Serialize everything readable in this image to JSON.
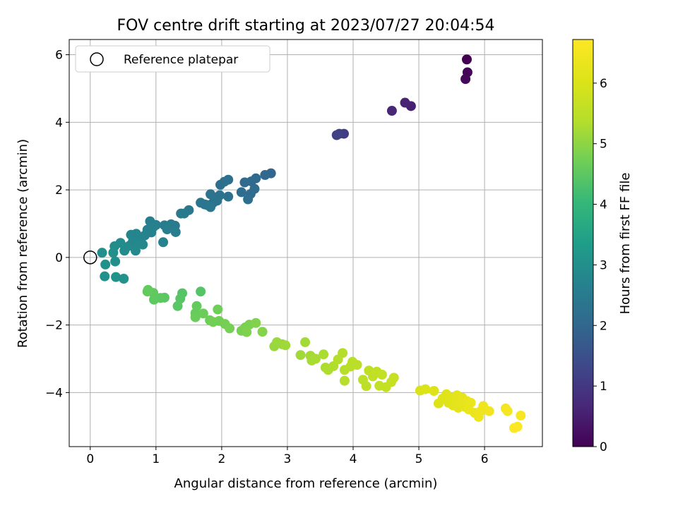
{
  "chart_data": {
    "type": "scatter",
    "title": "FOV centre drift starting at 2023/07/27 20:04:54",
    "xlabel": "Angular distance from reference (arcmin)",
    "ylabel": "Rotation from reference (arcmin)",
    "xlim": [
      -0.32,
      6.88
    ],
    "ylim": [
      -5.6,
      6.45
    ],
    "xticks": [
      "0",
      "1",
      "2",
      "3",
      "4",
      "5",
      "6"
    ],
    "yticks": [
      "−4",
      "−2",
      "0",
      "2",
      "4",
      "6"
    ],
    "grid": true,
    "legend": {
      "position": "top-left",
      "label": "Reference platepar"
    },
    "reference_point": {
      "x": 0,
      "y": 0
    },
    "colorbar": {
      "label": "Hours from first FF file",
      "range": [
        0,
        6.72
      ],
      "ticks": [
        "0",
        "1",
        "2",
        "3",
        "4",
        "5",
        "6"
      ],
      "colormap": "viridis"
    },
    "points": [
      {
        "x": 5.73,
        "y": 5.86,
        "h": 0.0
      },
      {
        "x": 5.74,
        "y": 5.48,
        "h": 0.05
      },
      {
        "x": 5.71,
        "y": 5.28,
        "h": 0.1
      },
      {
        "x": 4.88,
        "y": 4.48,
        "h": 0.55
      },
      {
        "x": 4.79,
        "y": 4.58,
        "h": 0.6
      },
      {
        "x": 4.59,
        "y": 4.34,
        "h": 0.65
      },
      {
        "x": 3.86,
        "y": 3.66,
        "h": 1.1
      },
      {
        "x": 3.79,
        "y": 3.66,
        "h": 1.15
      },
      {
        "x": 3.75,
        "y": 3.62,
        "h": 1.2
      },
      {
        "x": 2.75,
        "y": 2.49,
        "h": 2.0
      },
      {
        "x": 2.66,
        "y": 2.44,
        "h": 2.02
      },
      {
        "x": 2.52,
        "y": 2.34,
        "h": 2.05
      },
      {
        "x": 2.45,
        "y": 2.25,
        "h": 2.07
      },
      {
        "x": 2.35,
        "y": 2.22,
        "h": 2.09
      },
      {
        "x": 2.5,
        "y": 2.03,
        "h": 2.11
      },
      {
        "x": 2.44,
        "y": 1.88,
        "h": 2.13
      },
      {
        "x": 2.3,
        "y": 1.93,
        "h": 2.15
      },
      {
        "x": 2.4,
        "y": 1.72,
        "h": 2.17
      },
      {
        "x": 2.1,
        "y": 2.3,
        "h": 2.19
      },
      {
        "x": 2.04,
        "y": 2.24,
        "h": 2.21
      },
      {
        "x": 1.98,
        "y": 2.15,
        "h": 2.23
      },
      {
        "x": 2.1,
        "y": 1.8,
        "h": 2.25
      },
      {
        "x": 1.97,
        "y": 1.84,
        "h": 2.27
      },
      {
        "x": 1.93,
        "y": 1.68,
        "h": 2.29
      },
      {
        "x": 1.83,
        "y": 1.87,
        "h": 2.31
      },
      {
        "x": 1.87,
        "y": 1.62,
        "h": 2.33
      },
      {
        "x": 1.78,
        "y": 1.55,
        "h": 2.35
      },
      {
        "x": 1.68,
        "y": 1.62,
        "h": 2.37
      },
      {
        "x": 1.74,
        "y": 1.57,
        "h": 2.39
      },
      {
        "x": 1.83,
        "y": 1.49,
        "h": 2.41
      },
      {
        "x": 1.5,
        "y": 1.4,
        "h": 2.43
      },
      {
        "x": 1.43,
        "y": 1.3,
        "h": 2.45
      },
      {
        "x": 1.38,
        "y": 1.3,
        "h": 2.47
      },
      {
        "x": 1.29,
        "y": 0.94,
        "h": 2.49
      },
      {
        "x": 1.23,
        "y": 0.98,
        "h": 2.51
      },
      {
        "x": 1.13,
        "y": 0.95,
        "h": 2.53
      },
      {
        "x": 1.17,
        "y": 0.83,
        "h": 2.55
      },
      {
        "x": 1.3,
        "y": 0.75,
        "h": 2.57
      },
      {
        "x": 1.0,
        "y": 0.96,
        "h": 2.59
      },
      {
        "x": 0.91,
        "y": 1.07,
        "h": 2.61
      },
      {
        "x": 0.96,
        "y": 0.9,
        "h": 2.63
      },
      {
        "x": 0.87,
        "y": 0.82,
        "h": 2.65
      },
      {
        "x": 0.93,
        "y": 0.74,
        "h": 2.67
      },
      {
        "x": 1.11,
        "y": 0.45,
        "h": 2.69
      },
      {
        "x": 0.83,
        "y": 0.65,
        "h": 2.71
      },
      {
        "x": 0.77,
        "y": 0.55,
        "h": 2.73
      },
      {
        "x": 0.7,
        "y": 0.7,
        "h": 2.75
      },
      {
        "x": 0.62,
        "y": 0.67,
        "h": 2.77
      },
      {
        "x": 0.65,
        "y": 0.48,
        "h": 2.79
      },
      {
        "x": 0.6,
        "y": 0.35,
        "h": 2.81
      },
      {
        "x": 0.72,
        "y": 0.41,
        "h": 2.83
      },
      {
        "x": 0.8,
        "y": 0.38,
        "h": 2.85
      },
      {
        "x": 0.55,
        "y": 0.3,
        "h": 2.87
      },
      {
        "x": 0.69,
        "y": 0.2,
        "h": 2.89
      },
      {
        "x": 0.52,
        "y": 0.2,
        "h": 2.91
      },
      {
        "x": 0.46,
        "y": 0.43,
        "h": 2.93
      },
      {
        "x": 0.37,
        "y": 0.33,
        "h": 2.95
      },
      {
        "x": 0.35,
        "y": 0.14,
        "h": 2.97
      },
      {
        "x": 0.18,
        "y": 0.14,
        "h": 2.99
      },
      {
        "x": 0.38,
        "y": -0.12,
        "h": 3.01
      },
      {
        "x": 0.23,
        "y": -0.21,
        "h": 3.03
      },
      {
        "x": 0.22,
        "y": -0.56,
        "h": 3.05
      },
      {
        "x": 0.39,
        "y": -0.58,
        "h": 3.07
      },
      {
        "x": 0.51,
        "y": -0.63,
        "h": 3.09
      },
      {
        "x": 1.68,
        "y": -1.01,
        "h": 4.4
      },
      {
        "x": 1.4,
        "y": -1.06,
        "h": 4.42
      },
      {
        "x": 1.37,
        "y": -1.22,
        "h": 4.44
      },
      {
        "x": 1.33,
        "y": -1.44,
        "h": 4.46
      },
      {
        "x": 1.13,
        "y": -1.19,
        "h": 4.48
      },
      {
        "x": 1.07,
        "y": -1.2,
        "h": 4.5
      },
      {
        "x": 0.97,
        "y": -1.25,
        "h": 4.52
      },
      {
        "x": 0.96,
        "y": -1.05,
        "h": 4.54
      },
      {
        "x": 0.88,
        "y": -0.96,
        "h": 4.56
      },
      {
        "x": 0.87,
        "y": -1.01,
        "h": 4.58
      },
      {
        "x": 1.62,
        "y": -1.44,
        "h": 4.6
      },
      {
        "x": 1.6,
        "y": -1.65,
        "h": 4.62
      },
      {
        "x": 1.6,
        "y": -1.77,
        "h": 4.64
      },
      {
        "x": 1.72,
        "y": -1.66,
        "h": 4.66
      },
      {
        "x": 1.82,
        "y": -1.86,
        "h": 4.68
      },
      {
        "x": 1.94,
        "y": -1.54,
        "h": 4.7
      },
      {
        "x": 1.96,
        "y": -1.88,
        "h": 4.72
      },
      {
        "x": 1.87,
        "y": -1.91,
        "h": 4.74
      },
      {
        "x": 2.05,
        "y": -1.97,
        "h": 4.76
      },
      {
        "x": 2.12,
        "y": -2.1,
        "h": 4.78
      },
      {
        "x": 2.3,
        "y": -2.17,
        "h": 4.8
      },
      {
        "x": 2.36,
        "y": -2.07,
        "h": 4.82
      },
      {
        "x": 2.42,
        "y": -1.99,
        "h": 4.84
      },
      {
        "x": 2.38,
        "y": -2.21,
        "h": 4.86
      },
      {
        "x": 2.52,
        "y": -1.94,
        "h": 4.88
      },
      {
        "x": 2.62,
        "y": -2.2,
        "h": 4.9
      },
      {
        "x": 2.8,
        "y": -2.63,
        "h": 5.1
      },
      {
        "x": 2.84,
        "y": -2.51,
        "h": 5.12
      },
      {
        "x": 2.92,
        "y": -2.57,
        "h": 5.14
      },
      {
        "x": 2.97,
        "y": -2.6,
        "h": 5.16
      },
      {
        "x": 3.2,
        "y": -2.89,
        "h": 5.18
      },
      {
        "x": 3.27,
        "y": -2.51,
        "h": 5.2
      },
      {
        "x": 3.35,
        "y": -2.91,
        "h": 5.22
      },
      {
        "x": 3.37,
        "y": -3.05,
        "h": 5.24
      },
      {
        "x": 3.43,
        "y": -3.0,
        "h": 5.26
      },
      {
        "x": 3.55,
        "y": -2.87,
        "h": 5.28
      },
      {
        "x": 3.58,
        "y": -3.26,
        "h": 5.3
      },
      {
        "x": 3.62,
        "y": -3.33,
        "h": 5.32
      },
      {
        "x": 3.7,
        "y": -3.22,
        "h": 5.34
      },
      {
        "x": 3.77,
        "y": -3.02,
        "h": 5.36
      },
      {
        "x": 3.84,
        "y": -2.83,
        "h": 5.38
      },
      {
        "x": 3.87,
        "y": -3.33,
        "h": 5.4
      },
      {
        "x": 3.87,
        "y": -3.65,
        "h": 5.42
      },
      {
        "x": 3.96,
        "y": -3.23,
        "h": 5.44
      },
      {
        "x": 3.99,
        "y": -3.09,
        "h": 5.46
      },
      {
        "x": 4.06,
        "y": -3.18,
        "h": 5.48
      },
      {
        "x": 4.15,
        "y": -3.62,
        "h": 5.5
      },
      {
        "x": 4.2,
        "y": -3.81,
        "h": 5.52
      },
      {
        "x": 4.24,
        "y": -3.35,
        "h": 5.54
      },
      {
        "x": 4.3,
        "y": -3.52,
        "h": 5.56
      },
      {
        "x": 4.36,
        "y": -3.38,
        "h": 5.58
      },
      {
        "x": 4.4,
        "y": -3.8,
        "h": 5.6
      },
      {
        "x": 4.44,
        "y": -3.47,
        "h": 5.62
      },
      {
        "x": 4.5,
        "y": -3.84,
        "h": 5.64
      },
      {
        "x": 4.58,
        "y": -3.69,
        "h": 5.66
      },
      {
        "x": 4.62,
        "y": -3.56,
        "h": 5.68
      },
      {
        "x": 5.02,
        "y": -3.94,
        "h": 6.0
      },
      {
        "x": 5.1,
        "y": -3.9,
        "h": 6.02
      },
      {
        "x": 5.23,
        "y": -3.95,
        "h": 6.04
      },
      {
        "x": 5.3,
        "y": -4.32,
        "h": 6.06
      },
      {
        "x": 5.36,
        "y": -4.18,
        "h": 6.08
      },
      {
        "x": 5.42,
        "y": -4.05,
        "h": 6.1
      },
      {
        "x": 5.45,
        "y": -4.3,
        "h": 6.12
      },
      {
        "x": 5.49,
        "y": -4.15,
        "h": 6.14
      },
      {
        "x": 5.52,
        "y": -4.38,
        "h": 6.16
      },
      {
        "x": 5.56,
        "y": -4.22,
        "h": 6.18
      },
      {
        "x": 5.58,
        "y": -4.08,
        "h": 6.2
      },
      {
        "x": 5.6,
        "y": -4.45,
        "h": 6.22
      },
      {
        "x": 5.63,
        "y": -4.3,
        "h": 6.24
      },
      {
        "x": 5.66,
        "y": -4.15,
        "h": 6.26
      },
      {
        "x": 5.7,
        "y": -4.42,
        "h": 6.28
      },
      {
        "x": 5.73,
        "y": -4.25,
        "h": 6.3
      },
      {
        "x": 5.76,
        "y": -4.5,
        "h": 6.32
      },
      {
        "x": 5.79,
        "y": -4.3,
        "h": 6.34
      },
      {
        "x": 5.85,
        "y": -4.6,
        "h": 6.36
      },
      {
        "x": 5.91,
        "y": -4.72,
        "h": 6.38
      },
      {
        "x": 5.94,
        "y": -4.55,
        "h": 6.4
      },
      {
        "x": 5.98,
        "y": -4.4,
        "h": 6.42
      },
      {
        "x": 6.07,
        "y": -4.55,
        "h": 6.44
      },
      {
        "x": 6.32,
        "y": -4.47,
        "h": 6.5
      },
      {
        "x": 6.35,
        "y": -4.55,
        "h": 6.54
      },
      {
        "x": 6.55,
        "y": -4.68,
        "h": 6.6
      },
      {
        "x": 6.5,
        "y": -5.01,
        "h": 6.65
      },
      {
        "x": 6.45,
        "y": -5.05,
        "h": 6.7
      }
    ]
  }
}
